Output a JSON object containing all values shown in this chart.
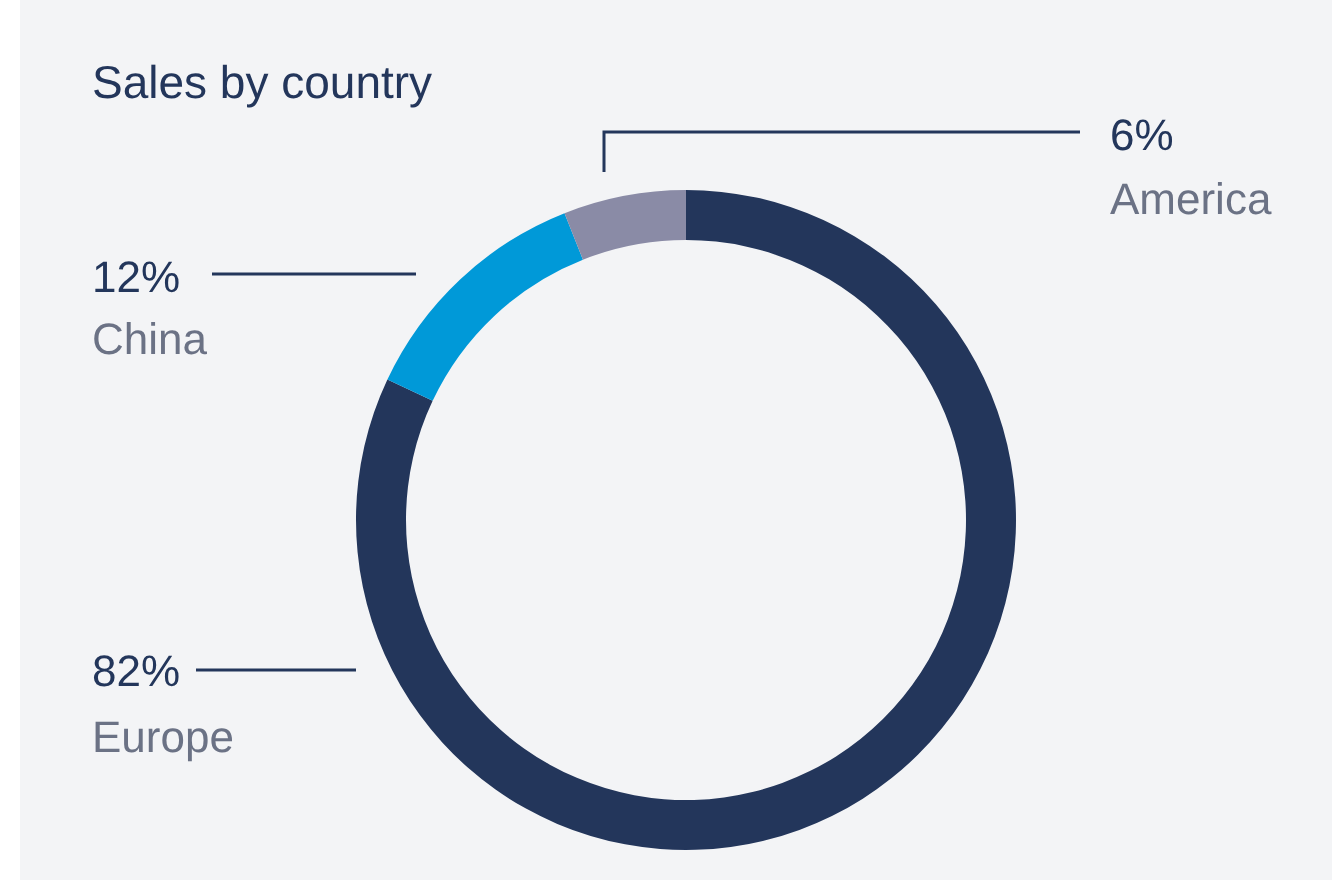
{
  "chart_data": {
    "type": "donut",
    "title": "Sales by country",
    "categories": [
      "Europe",
      "China",
      "America"
    ],
    "values": [
      82,
      12,
      6
    ],
    "value_labels": [
      "82%",
      "12%",
      "6%"
    ],
    "colors": [
      "#23365b",
      "#0099d8",
      "#8a8ba6"
    ]
  }
}
